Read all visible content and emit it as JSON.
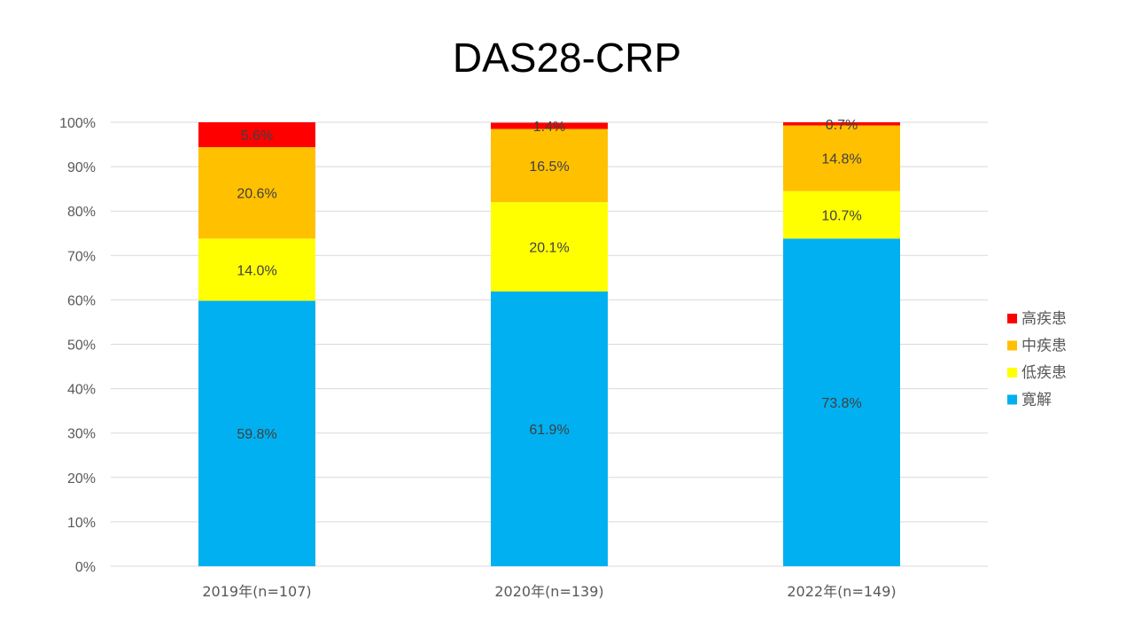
{
  "chart_data": {
    "type": "bar",
    "stacked": true,
    "title": "DAS28-CRP",
    "categories": [
      "2019年(n=107)",
      "2020年(n=139)",
      "2022年(n=149)"
    ],
    "series": [
      {
        "name": "寛解",
        "color": "#00B0F0",
        "values": [
          59.8,
          61.9,
          73.8
        ],
        "labels": [
          "59.8%",
          "61.9%",
          "73.8%"
        ]
      },
      {
        "name": "低疾患",
        "color": "#FFFF00",
        "values": [
          14.0,
          20.1,
          10.7
        ],
        "labels": [
          "14.0%",
          "20.1%",
          "10.7%"
        ]
      },
      {
        "name": "中疾患",
        "color": "#FFC000",
        "values": [
          20.6,
          16.5,
          14.8
        ],
        "labels": [
          "20.6%",
          "16.5%",
          "14.8%"
        ]
      },
      {
        "name": "高疾患",
        "color": "#FF0000",
        "values": [
          5.6,
          1.4,
          0.7
        ],
        "labels": [
          "5.6%",
          "1.4%",
          "0.7%"
        ]
      }
    ],
    "y_ticks": [
      "0%",
      "10%",
      "20%",
      "30%",
      "40%",
      "50%",
      "60%",
      "70%",
      "80%",
      "90%",
      "100%"
    ],
    "ylim": [
      0,
      100
    ],
    "grid": true,
    "legend_position": "right",
    "legend_order": [
      "高疾患",
      "中疾患",
      "低疾患",
      "寛解"
    ],
    "xlabel": "",
    "ylabel": ""
  }
}
